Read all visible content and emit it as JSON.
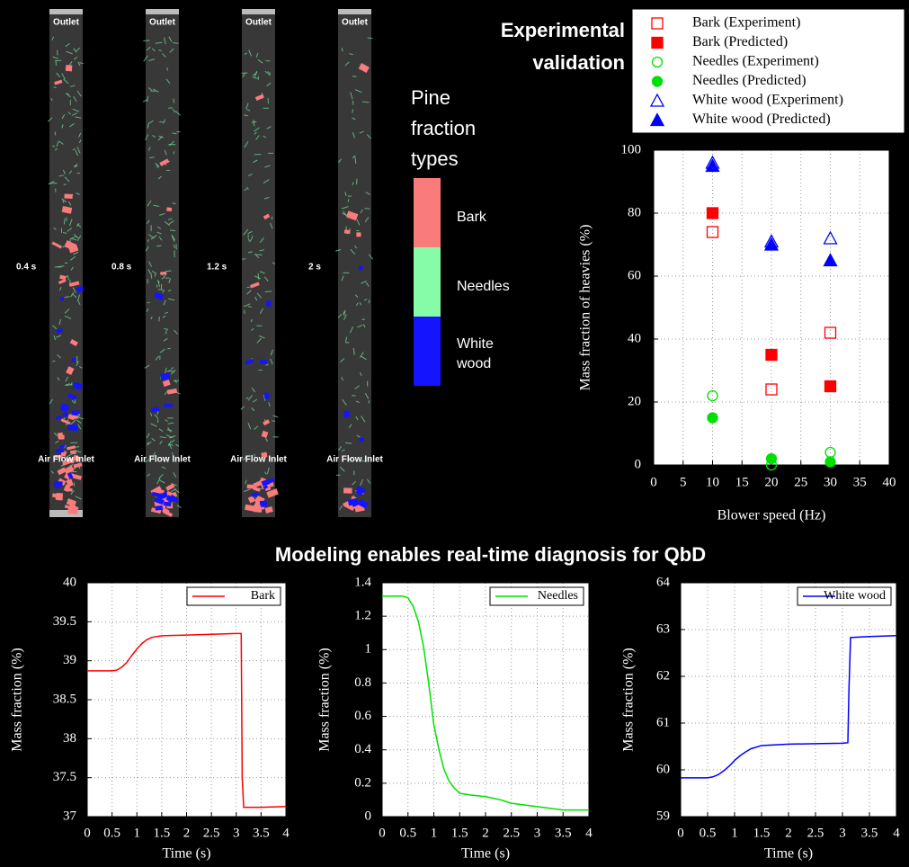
{
  "simulation": {
    "outlet_labels": [
      "Outlet",
      "Outlet",
      "Outlet",
      "Outlet"
    ],
    "time_labels": [
      "0.4 s",
      "0.8 s",
      "1.2 s",
      "2 s"
    ],
    "inlet_labels": [
      "Air Flow Inlet",
      "Air Flow Inlet",
      "Air Flow Inlet",
      "Air Flow Inlet"
    ]
  },
  "pine_legend": {
    "title": "Pine fraction types",
    "items": [
      {
        "label": "Bark",
        "color": "#fa7b7b"
      },
      {
        "label": "Needles",
        "color": "#86fba8"
      },
      {
        "label": "White wood",
        "color": "#1414ff"
      }
    ]
  },
  "validation_title": "Experimental validation",
  "section_title": "Modeling enables real-time diagnosis for QbD",
  "chart_data": [
    {
      "type": "scatter",
      "xlabel": "Blower speed (Hz)",
      "ylabel": "Mass fraction of heavies (%)",
      "xlim": [
        0,
        40
      ],
      "ylim": [
        0,
        100
      ],
      "xticks": [
        0,
        5,
        10,
        15,
        20,
        25,
        30,
        35,
        40
      ],
      "yticks": [
        0,
        20,
        40,
        60,
        80,
        100
      ],
      "grid": true,
      "legend": "outside-top",
      "x": [
        10,
        20,
        30
      ],
      "series": [
        {
          "name": "Bark (Experiment)",
          "color": "#ff0000",
          "marker": "square",
          "filled": false,
          "values": [
            74,
            24,
            42
          ]
        },
        {
          "name": "Bark (Predicted)",
          "color": "#ff0000",
          "marker": "square",
          "filled": true,
          "values": [
            80,
            35,
            25
          ]
        },
        {
          "name": "Needles (Experiment)",
          "color": "#00e000",
          "marker": "circle",
          "filled": false,
          "values": [
            22,
            0,
            4
          ]
        },
        {
          "name": "Needles (Predicted)",
          "color": "#00e000",
          "marker": "circle",
          "filled": true,
          "values": [
            15,
            2,
            1
          ]
        },
        {
          "name": "White wood (Experiment)",
          "color": "#0000ff",
          "marker": "triangle",
          "filled": false,
          "values": [
            96,
            71,
            72
          ]
        },
        {
          "name": "White wood (Predicted)",
          "color": "#0000ff",
          "marker": "triangle",
          "filled": true,
          "values": [
            95,
            70,
            65
          ]
        }
      ]
    },
    {
      "type": "line",
      "xlabel": "Time (s)",
      "ylabel": "Mass fraction (%)",
      "xlim": [
        0,
        4
      ],
      "ylim": [
        37,
        40
      ],
      "xticks": [
        0,
        0.5,
        1,
        1.5,
        2,
        2.5,
        3,
        3.5,
        4
      ],
      "yticks": [
        37,
        37.5,
        38,
        38.5,
        39,
        39.5,
        40
      ],
      "grid": true,
      "legend": "upper right",
      "x": [
        0,
        0.5,
        0.6,
        0.7,
        0.8,
        0.9,
        1.0,
        1.1,
        1.2,
        1.3,
        1.5,
        2,
        2.5,
        3,
        3.1,
        3.12,
        3.15,
        3.5,
        4
      ],
      "series": [
        {
          "name": "Bark",
          "color": "#ff0000",
          "values": [
            38.87,
            38.87,
            38.88,
            38.92,
            38.98,
            39.07,
            39.15,
            39.22,
            39.27,
            39.3,
            39.32,
            39.33,
            39.34,
            39.35,
            39.35,
            37.5,
            37.12,
            37.12,
            37.13
          ]
        }
      ]
    },
    {
      "type": "line",
      "xlabel": "Time (s)",
      "ylabel": "Mass fraction (%)",
      "xlim": [
        0,
        4
      ],
      "ylim": [
        0,
        1.4
      ],
      "xticks": [
        0,
        0.5,
        1,
        1.5,
        2,
        2.5,
        3,
        3.5,
        4
      ],
      "yticks": [
        0,
        0.2,
        0.4,
        0.6,
        0.8,
        1,
        1.2,
        1.4
      ],
      "grid": true,
      "legend": "upper right",
      "x": [
        0,
        0.4,
        0.5,
        0.6,
        0.7,
        0.8,
        0.9,
        1.0,
        1.1,
        1.2,
        1.3,
        1.4,
        1.5,
        1.7,
        2,
        2.3,
        2.5,
        3,
        3.5,
        4
      ],
      "series": [
        {
          "name": "Needles",
          "color": "#00e000",
          "values": [
            1.32,
            1.32,
            1.31,
            1.26,
            1.17,
            1.02,
            0.8,
            0.55,
            0.4,
            0.28,
            0.21,
            0.17,
            0.14,
            0.13,
            0.12,
            0.1,
            0.08,
            0.06,
            0.04,
            0.04
          ]
        }
      ]
    },
    {
      "type": "line",
      "xlabel": "Time (s)",
      "ylabel": "Mass fraction (%)",
      "xlim": [
        0,
        4
      ],
      "ylim": [
        59,
        64
      ],
      "xticks": [
        0,
        0.5,
        1,
        1.5,
        2,
        2.5,
        3,
        3.5,
        4
      ],
      "yticks": [
        59,
        60,
        61,
        62,
        63,
        64
      ],
      "grid": true,
      "legend": "upper right",
      "x": [
        0,
        0.5,
        0.6,
        0.7,
        0.8,
        0.9,
        1.0,
        1.1,
        1.2,
        1.3,
        1.5,
        2,
        2.5,
        3,
        3.1,
        3.12,
        3.15,
        3.5,
        4
      ],
      "series": [
        {
          "name": "White wood",
          "color": "#0000ff",
          "values": [
            59.83,
            59.83,
            59.85,
            59.9,
            59.98,
            60.08,
            60.2,
            60.3,
            60.38,
            60.45,
            60.52,
            60.55,
            60.56,
            60.57,
            60.58,
            61.7,
            62.83,
            62.85,
            62.87
          ]
        }
      ]
    }
  ]
}
